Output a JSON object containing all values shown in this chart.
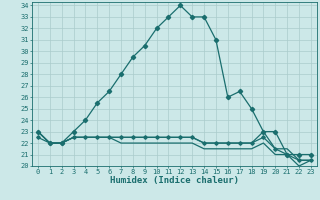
{
  "title": "",
  "xlabel": "Humidex (Indice chaleur)",
  "background_color": "#cce8e8",
  "grid_color": "#aacccc",
  "line_color": "#1a6e6e",
  "x_values": [
    0,
    1,
    2,
    3,
    4,
    5,
    6,
    7,
    8,
    9,
    10,
    11,
    12,
    13,
    14,
    15,
    16,
    17,
    18,
    19,
    20,
    21,
    22,
    23
  ],
  "line1": [
    23.0,
    22.0,
    22.0,
    23.0,
    24.0,
    25.5,
    26.5,
    28.0,
    29.5,
    30.5,
    32.0,
    33.0,
    34.0,
    33.0,
    33.0,
    31.0,
    26.0,
    26.5,
    25.0,
    23.0,
    23.0,
    21.0,
    21.0,
    21.0
  ],
  "line2": [
    22.5,
    22.0,
    22.0,
    22.5,
    22.5,
    22.5,
    22.5,
    22.5,
    22.5,
    22.5,
    22.5,
    22.5,
    22.5,
    22.5,
    22.0,
    22.0,
    22.0,
    22.0,
    22.0,
    22.5,
    21.5,
    21.0,
    20.5,
    20.5
  ],
  "line3": [
    23.0,
    22.0,
    22.0,
    22.5,
    22.5,
    22.5,
    22.5,
    22.5,
    22.5,
    22.5,
    22.5,
    22.5,
    22.5,
    22.5,
    22.0,
    22.0,
    22.0,
    22.0,
    22.0,
    23.0,
    21.5,
    21.5,
    20.5,
    20.5
  ],
  "line4": [
    23.0,
    22.0,
    22.0,
    22.5,
    22.5,
    22.5,
    22.5,
    22.0,
    22.0,
    22.0,
    22.0,
    22.0,
    22.0,
    22.0,
    21.5,
    21.5,
    21.5,
    21.5,
    21.5,
    22.0,
    21.0,
    21.0,
    20.0,
    20.5
  ],
  "ylim": [
    20,
    34
  ],
  "xlim": [
    -0.5,
    23.5
  ],
  "yticks": [
    20,
    21,
    22,
    23,
    24,
    25,
    26,
    27,
    28,
    29,
    30,
    31,
    32,
    33,
    34
  ],
  "xticks": [
    0,
    1,
    2,
    3,
    4,
    5,
    6,
    7,
    8,
    9,
    10,
    11,
    12,
    13,
    14,
    15,
    16,
    17,
    18,
    19,
    20,
    21,
    22,
    23
  ],
  "tick_fontsize": 5.0,
  "xlabel_fontsize": 6.5
}
